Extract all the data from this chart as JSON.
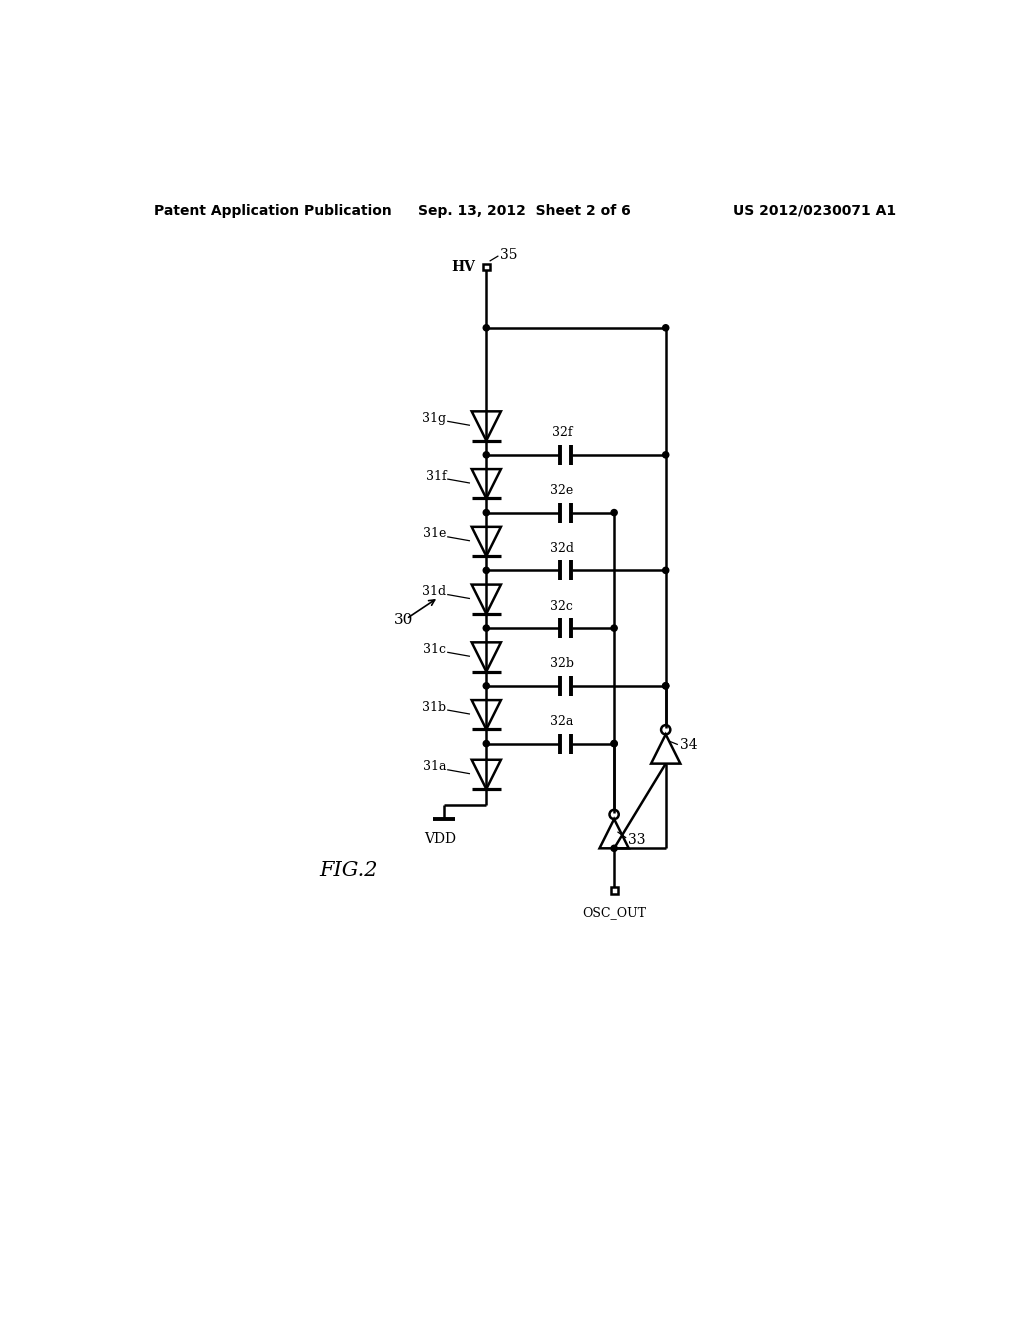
{
  "title_left": "Patent Application Publication",
  "title_center": "Sep. 13, 2012  Sheet 2 of 6",
  "title_right": "US 2012/0230071 A1",
  "fig_label": "FIG.2",
  "background": "#ffffff",
  "line_color": "#000000",
  "diode_labels": [
    "31a",
    "31b",
    "31c",
    "31d",
    "31e",
    "31f",
    "31g"
  ],
  "cap_labels": [
    "32a",
    "32b",
    "32c",
    "32d",
    "32e",
    "32f"
  ],
  "label_30": "30",
  "label_33": "33",
  "label_34": "34",
  "label_35": "35",
  "label_HV": "HV",
  "label_VDD": "VDD",
  "label_OSC_OUT": "OSC_OUT"
}
